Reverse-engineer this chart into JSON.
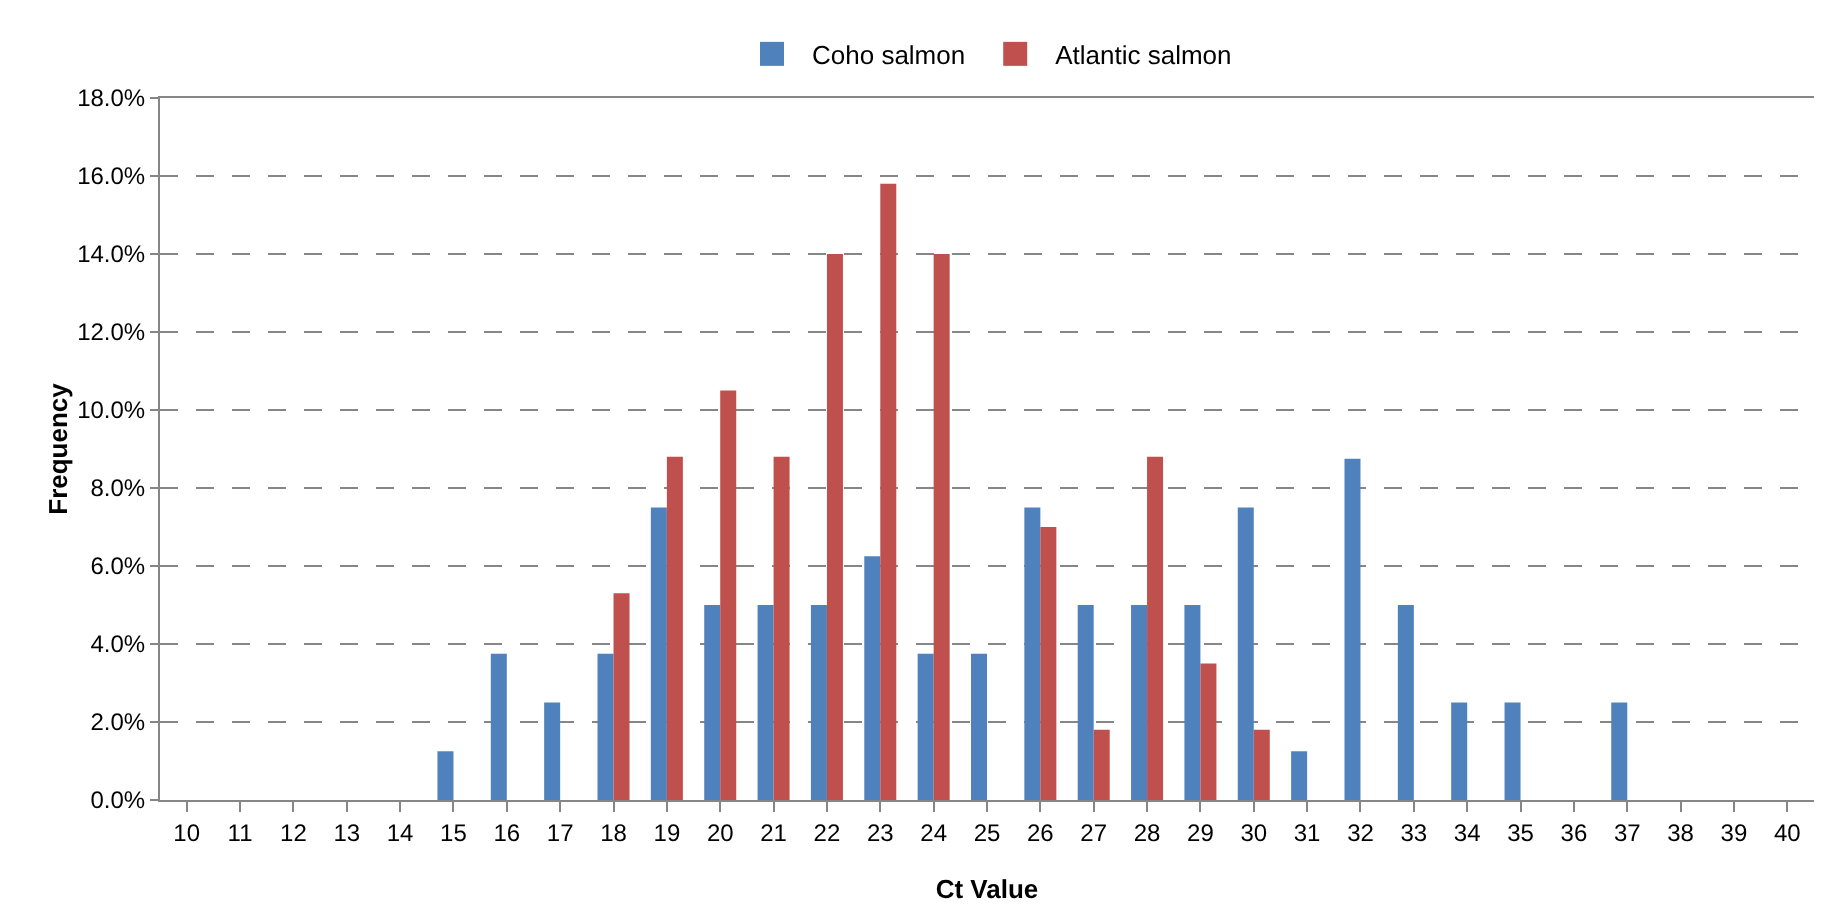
{
  "chart_data": {
    "type": "bar",
    "xlabel": "Ct Value",
    "ylabel": "Frequency",
    "categories": [
      "10",
      "11",
      "12",
      "13",
      "14",
      "15",
      "16",
      "17",
      "18",
      "19",
      "20",
      "21",
      "22",
      "23",
      "24",
      "25",
      "26",
      "27",
      "28",
      "29",
      "30",
      "31",
      "32",
      "33",
      "34",
      "35",
      "36",
      "37",
      "38",
      "39",
      "40"
    ],
    "series": [
      {
        "name": "Coho salmon",
        "color": "#4f81bd",
        "values": [
          0,
          0,
          0,
          0,
          0,
          1.25,
          3.75,
          2.5,
          3.75,
          7.5,
          5,
          5,
          5,
          6.25,
          3.75,
          3.75,
          7.5,
          5,
          5,
          5,
          7.5,
          1.25,
          8.75,
          5,
          2.5,
          2.5,
          0,
          2.5,
          0,
          0,
          0
        ]
      },
      {
        "name": "Atlantic salmon",
        "color": "#c0504d",
        "values": [
          0,
          0,
          0,
          0,
          0,
          0,
          0,
          0,
          5.3,
          8.8,
          10.5,
          8.8,
          14.0,
          15.8,
          14.0,
          0,
          7.0,
          1.8,
          8.8,
          3.5,
          1.8,
          0,
          0,
          0,
          0,
          0,
          0,
          0,
          0,
          0,
          0
        ]
      }
    ],
    "ylim": [
      0,
      18
    ],
    "yticks": [
      {
        "value": 0,
        "label": "0.0%"
      },
      {
        "value": 2,
        "label": "2.0%"
      },
      {
        "value": 4,
        "label": "4.0%"
      },
      {
        "value": 6,
        "label": "6.0%"
      },
      {
        "value": 8,
        "label": "8.0%"
      },
      {
        "value": 10,
        "label": "10.0%"
      },
      {
        "value": 12,
        "label": "12.0%"
      },
      {
        "value": 14,
        "label": "14.0%"
      },
      {
        "value": 16,
        "label": "16.0%"
      },
      {
        "value": 18,
        "label": "18.0%"
      }
    ],
    "grid": "y",
    "legend": "top"
  }
}
